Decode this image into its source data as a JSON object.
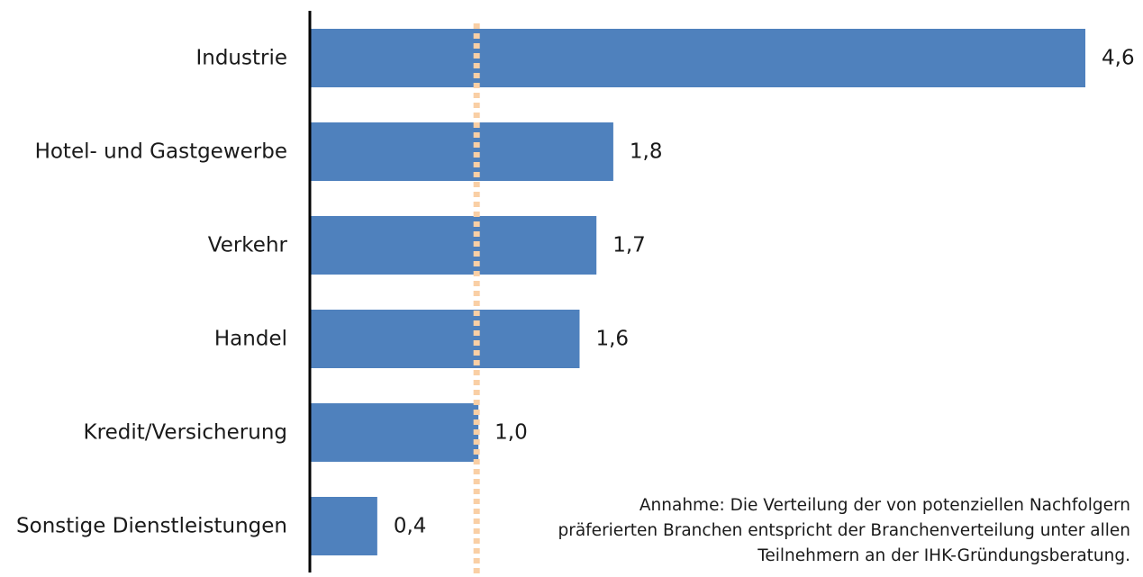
{
  "chart_data": {
    "type": "bar",
    "orientation": "horizontal",
    "categories": [
      "Industrie",
      "Hotel- und Gastgewerbe",
      "Verkehr",
      "Handel",
      "Kredit/Versicherung",
      "Sonstige Dienstleistungen"
    ],
    "values": [
      4.6,
      1.8,
      1.7,
      1.6,
      1.0,
      0.4
    ],
    "value_labels": [
      "4,6",
      "1,8",
      "1,7",
      "1,6",
      "1,0",
      "0,4"
    ],
    "xlim": [
      0,
      4.6
    ],
    "reference_line": {
      "value": 1.0,
      "style": "dotted"
    },
    "grid": false,
    "colors": {
      "bar": "#4f81bd",
      "reference_line": "#f9cfa5",
      "axis": "#000000"
    }
  },
  "annotation": {
    "lines": [
      "Annahme: Die Verteilung der von potenziellen Nachfolgern",
      "präferierten Branchen entspricht der Branchenverteilung unter allen",
      "Teilnehmern an der IHK-Gründungsberatung."
    ]
  }
}
